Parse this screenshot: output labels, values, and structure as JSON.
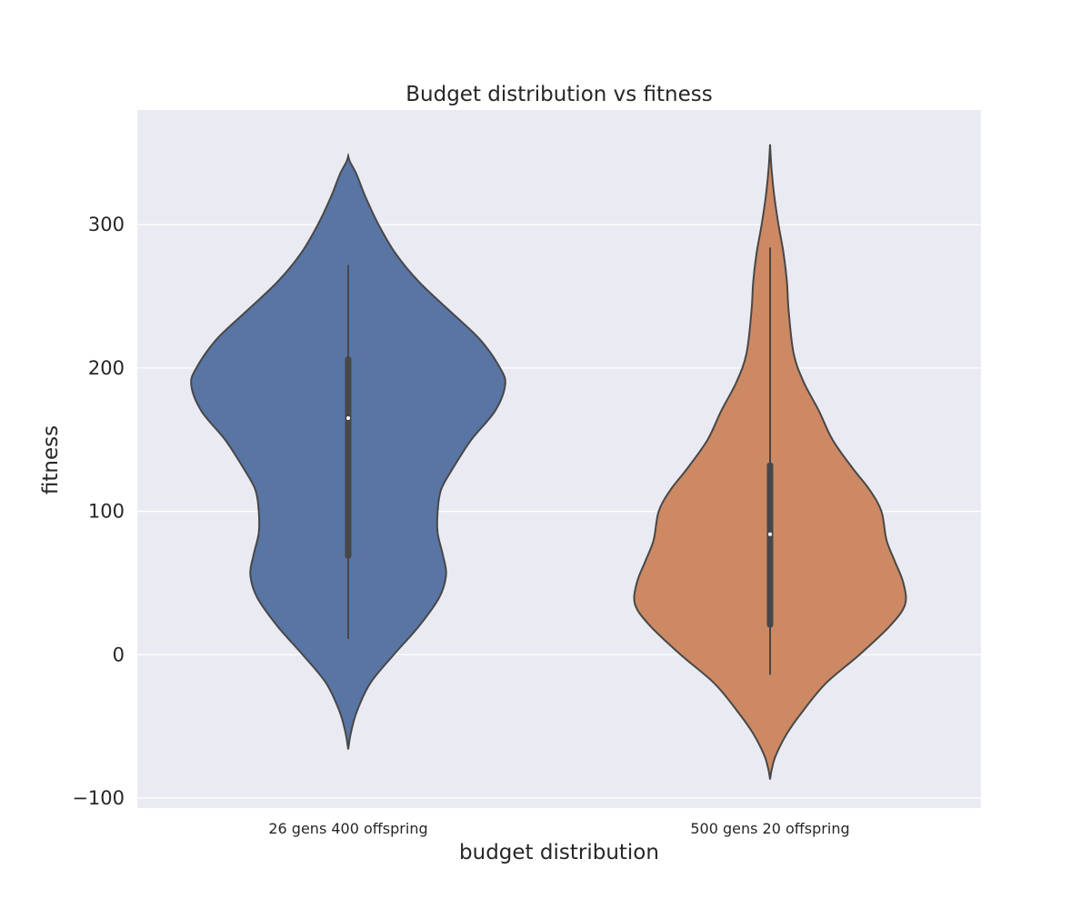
{
  "chart_data": {
    "type": "violin",
    "title": "Budget distribution vs fitness",
    "xlabel": "budget distribution",
    "ylabel": "fitness",
    "ylim": [
      -107,
      380
    ],
    "yticks": [
      -100,
      0,
      100,
      200,
      300
    ],
    "ytick_labels": [
      "−100",
      "0",
      "100",
      "200",
      "300"
    ],
    "grid": true,
    "background": "#eaeaf2",
    "categories": [
      "26 gens 400 offspring",
      "500 gens 20 offspring"
    ],
    "series": [
      {
        "color": "#5875a4",
        "range": [
          -66,
          348
        ],
        "whiskers": [
          11,
          272
        ],
        "q1": 69,
        "median": 165,
        "q3": 206,
        "density": [
          [
            -66,
            0.0
          ],
          [
            -55,
            0.015
          ],
          [
            -40,
            0.05
          ],
          [
            -20,
            0.13
          ],
          [
            0,
            0.27
          ],
          [
            20,
            0.42
          ],
          [
            40,
            0.54
          ],
          [
            56,
            0.58
          ],
          [
            70,
            0.56
          ],
          [
            85,
            0.53
          ],
          [
            100,
            0.53
          ],
          [
            115,
            0.55
          ],
          [
            130,
            0.62
          ],
          [
            150,
            0.73
          ],
          [
            170,
            0.87
          ],
          [
            188,
            0.93
          ],
          [
            200,
            0.9
          ],
          [
            220,
            0.78
          ],
          [
            240,
            0.6
          ],
          [
            260,
            0.42
          ],
          [
            280,
            0.28
          ],
          [
            300,
            0.18
          ],
          [
            320,
            0.1
          ],
          [
            335,
            0.05
          ],
          [
            344,
            0.01
          ],
          [
            348,
            0.0
          ]
        ]
      },
      {
        "color": "#cc8963",
        "range": [
          -87,
          356
        ],
        "whiskers": [
          -14,
          284
        ],
        "q1": 21,
        "median": 84,
        "q3": 132,
        "density": [
          [
            -87,
            0.0
          ],
          [
            -80,
            0.01
          ],
          [
            -70,
            0.035
          ],
          [
            -55,
            0.1
          ],
          [
            -40,
            0.19
          ],
          [
            -20,
            0.33
          ],
          [
            0,
            0.53
          ],
          [
            20,
            0.71
          ],
          [
            35,
            0.8
          ],
          [
            50,
            0.79
          ],
          [
            65,
            0.74
          ],
          [
            80,
            0.69
          ],
          [
            100,
            0.66
          ],
          [
            115,
            0.59
          ],
          [
            130,
            0.49
          ],
          [
            150,
            0.37
          ],
          [
            170,
            0.29
          ],
          [
            190,
            0.2
          ],
          [
            210,
            0.14
          ],
          [
            240,
            0.11
          ],
          [
            260,
            0.1
          ],
          [
            280,
            0.08
          ],
          [
            300,
            0.05
          ],
          [
            320,
            0.025
          ],
          [
            340,
            0.008
          ],
          [
            356,
            0.0
          ]
        ]
      }
    ]
  }
}
